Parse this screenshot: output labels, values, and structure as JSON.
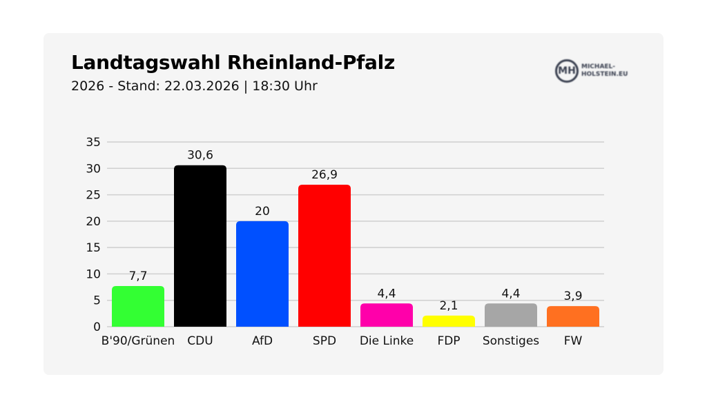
{
  "header": {
    "title": "Landtagswahl Rheinland-Pfalz",
    "subtitle": "2026 - Stand: 22.03.2026 | 18:30 Uhr"
  },
  "logo": {
    "monogram": "MH",
    "text": "MICHAEL-HOLSTEIN.EU"
  },
  "chart_data": {
    "type": "bar",
    "title": "Landtagswahl Rheinland-Pfalz",
    "categories": [
      "B'90/Grünen",
      "CDU",
      "AfD",
      "SPD",
      "Die Linke",
      "FDP",
      "Sonstiges",
      "FW"
    ],
    "values": [
      7.7,
      30.6,
      20,
      26.9,
      4.4,
      2.1,
      4.4,
      3.9
    ],
    "labels": [
      "7,7",
      "30,6",
      "20",
      "26,9",
      "4,4",
      "2,1",
      "4,4",
      "3,9"
    ],
    "colors": [
      "#33ff33",
      "#000000",
      "#0050ff",
      "#ff0000",
      "#ff00aa",
      "#ffff00",
      "#a6a6a6",
      "#ff7020"
    ],
    "yticks": [
      0,
      5,
      10,
      15,
      20,
      25,
      30,
      35
    ],
    "ylim": [
      0,
      35
    ],
    "xlabel": "",
    "ylabel": "",
    "grid": true,
    "legend": "none"
  }
}
